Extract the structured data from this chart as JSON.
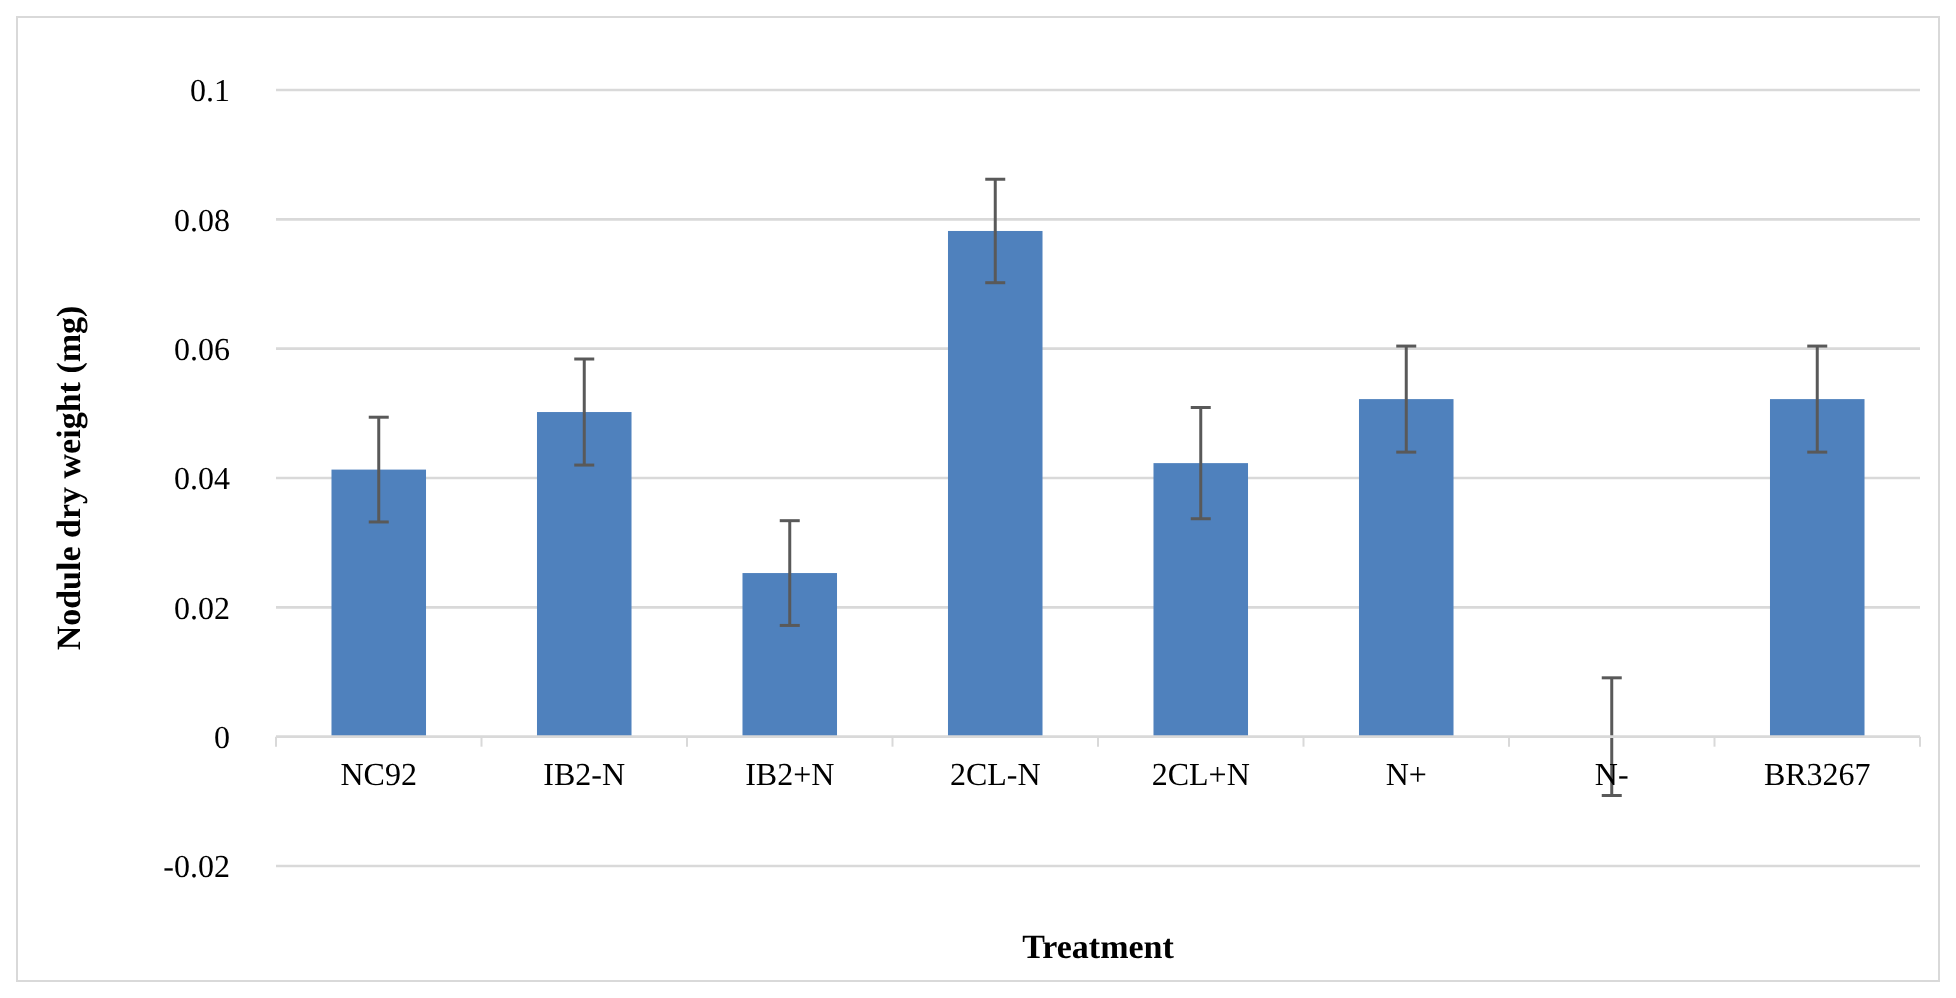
{
  "chart_data": {
    "type": "bar",
    "xlabel": "Treatment",
    "ylabel": "Nodule dry weight (mg)",
    "categories": [
      "NC92",
      "IB2-N",
      "IB2+N",
      "2CL-N",
      "2CL+N",
      "N+",
      "N-",
      "BR3267"
    ],
    "values": [
      0.0413,
      0.0502,
      0.0253,
      0.0782,
      0.0423,
      0.0522,
      0,
      0.0522
    ],
    "errors": [
      0.0081,
      0.0082,
      0.0081,
      0.008,
      0.0086,
      0.0082,
      0.0091,
      0.0082
    ],
    "color": "#4f81bd",
    "ylim": [
      -0.02,
      0.1
    ],
    "yticks": [
      -0.02,
      0,
      0.02,
      0.04,
      0.06,
      0.08,
      0.1
    ],
    "grid": "y"
  }
}
